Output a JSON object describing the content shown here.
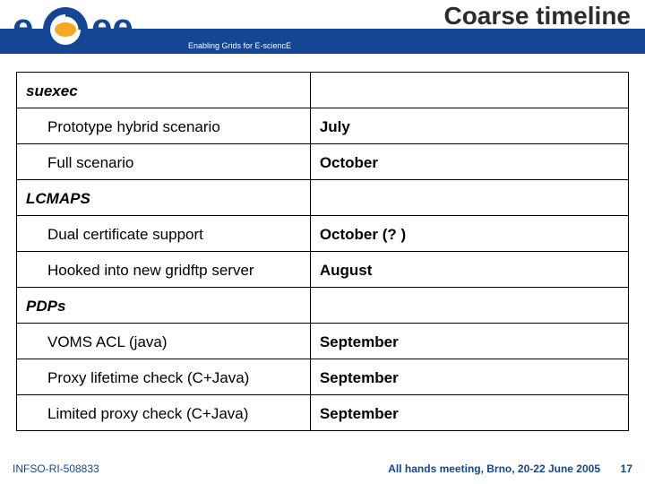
{
  "header": {
    "title": "Coarse timeline",
    "tagline": "Enabling Grids for E-sciencE",
    "logo_text_left": "e",
    "logo_text_right": "ee",
    "band_color": "#144695",
    "logo_outer_color": "#144695",
    "logo_inner_color": "#f6a823"
  },
  "table": {
    "rows": [
      {
        "type": "section",
        "label": "suexec",
        "value": ""
      },
      {
        "type": "item",
        "label": "Prototype hybrid scenario",
        "value": "July"
      },
      {
        "type": "item",
        "label": "Full scenario",
        "value": "October"
      },
      {
        "type": "section",
        "label": "LCMAPS",
        "value": ""
      },
      {
        "type": "item",
        "label": "Dual certificate support",
        "value": "October (? )"
      },
      {
        "type": "item",
        "label": "Hooked into new gridftp server",
        "value": "August"
      },
      {
        "type": "section",
        "label": "PDPs",
        "value": ""
      },
      {
        "type": "item",
        "label": "VOMS ACL (java)",
        "value": "September"
      },
      {
        "type": "item",
        "label": "Proxy lifetime check (C+Java)",
        "value": "September"
      },
      {
        "type": "item",
        "label": "Limited proxy check (C+Java)",
        "value": "September"
      }
    ]
  },
  "footer": {
    "reference": "INFSO-RI-508833",
    "meeting": "All hands meeting, Brno, 20-22 June 2005",
    "page_number": "17"
  }
}
